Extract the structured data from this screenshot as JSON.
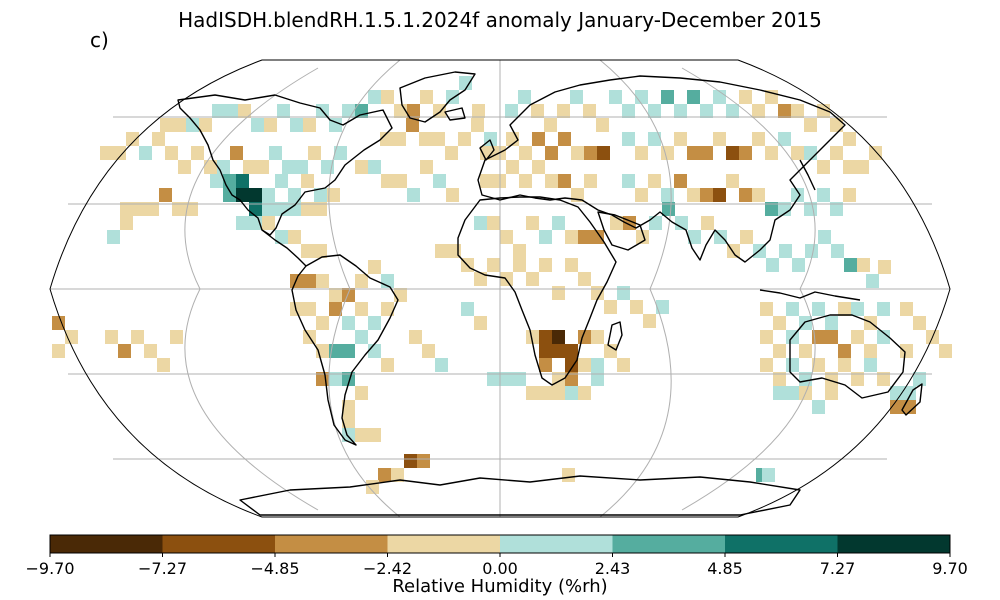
{
  "title": "HadISDH.blendRH.1.5.1.2024f anomaly January-December 2015",
  "panel_label": "c)",
  "projection": "robinson",
  "colorbar": {
    "label": "Relative Humidity (%rh)",
    "ticks": [
      "−9.70",
      "−7.27",
      "−4.85",
      "−2.42",
      "0.00",
      "2.43",
      "4.85",
      "7.27",
      "9.70"
    ],
    "colors": [
      "#4a2906",
      "#8c500f",
      "#c48e44",
      "#ecd7a4",
      "#b0e0da",
      "#55ad9f",
      "#0f7167",
      "#02382f"
    ]
  },
  "colors": {
    "coast": "#000000",
    "graticule": "#b0b0b0",
    "ocean": "#ffffff"
  },
  "map_data": {
    "kind": "gridded anomaly",
    "grid_resolution_deg": 5,
    "levels": [
      -9.7,
      -7.27,
      -4.85,
      -2.42,
      0.0,
      2.43,
      4.85,
      7.27,
      9.7
    ],
    "features": [
      {
        "region": "Southern Africa (Botswana/Namibia)",
        "level_class": 0,
        "note": "strongest dry anomaly"
      },
      {
        "region": "Mexico / SW United States",
        "level_class": 7,
        "note": "strongest moist anomaly"
      },
      {
        "region": "Central Asia / Mongolia",
        "level_class": 1
      },
      {
        "region": "Europe",
        "level_class": 2
      },
      {
        "region": "Eastern Australia",
        "level_class": 2
      },
      {
        "region": "Southern South America",
        "level_class": 5
      },
      {
        "region": "Canada / North Atlantic",
        "level_class": 4
      },
      {
        "region": "North Africa / Arabia",
        "level_class": 3
      }
    ]
  }
}
